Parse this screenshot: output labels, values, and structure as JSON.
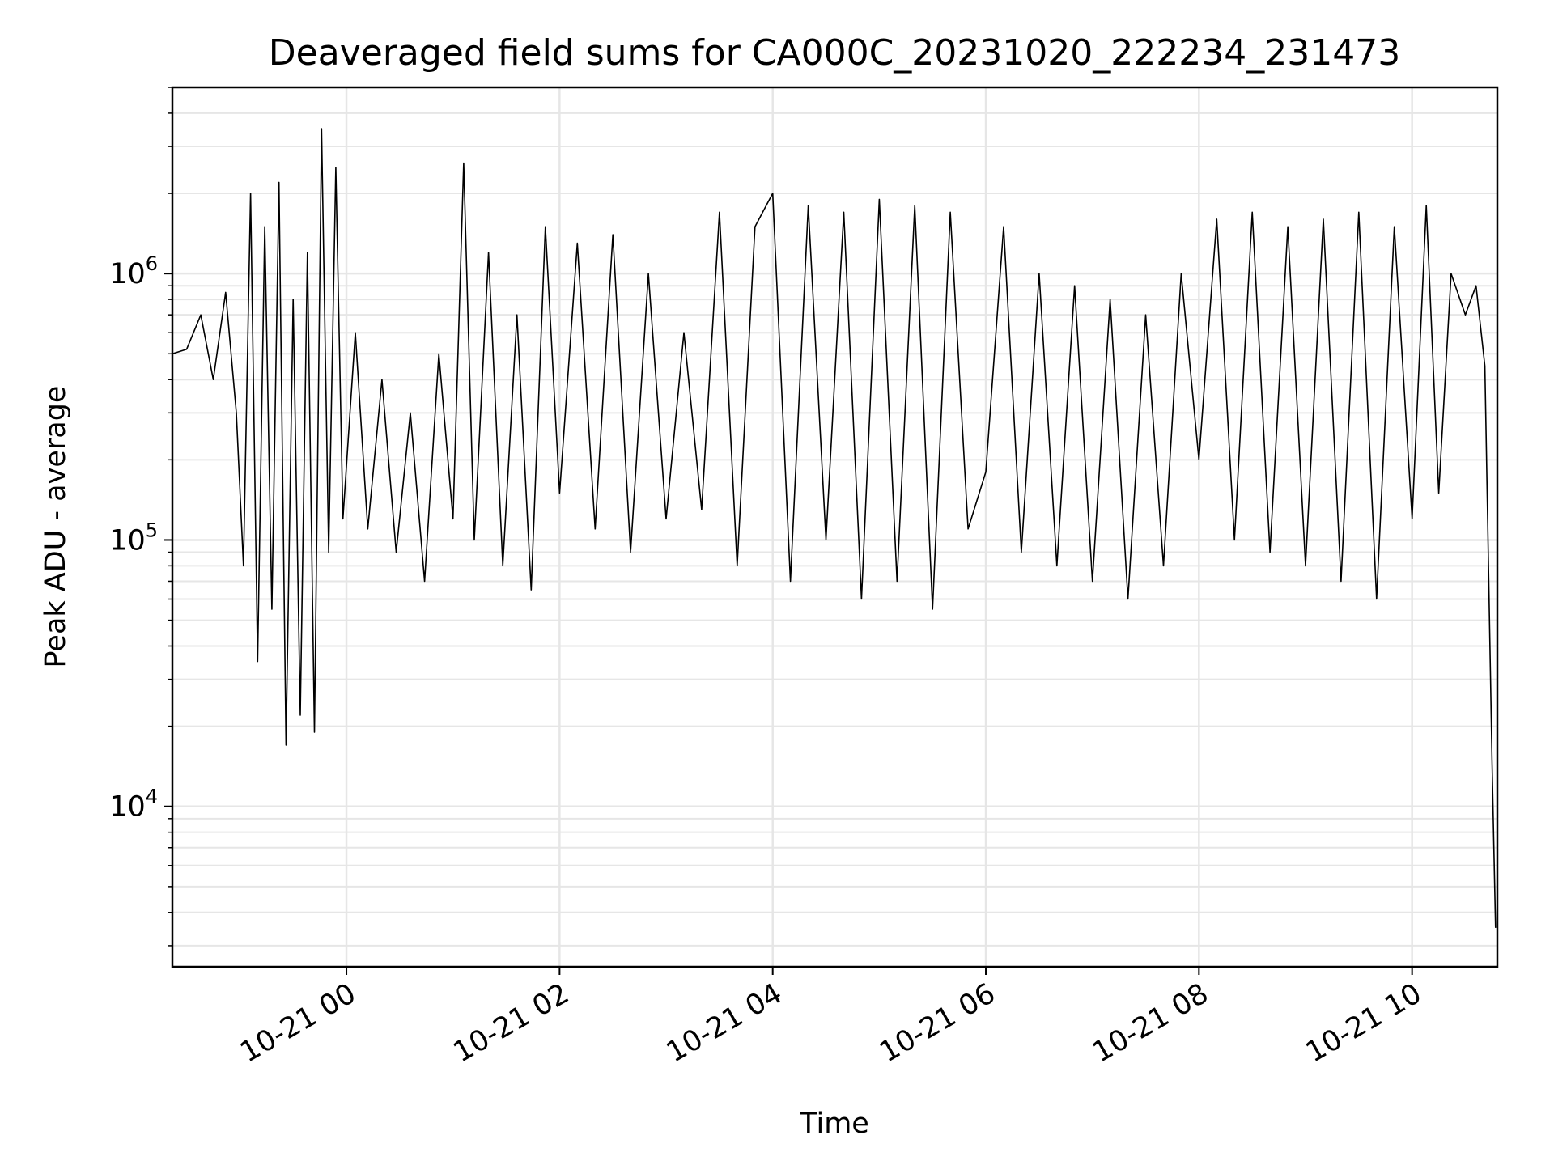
{
  "chart_data": {
    "type": "line",
    "title": "Deaveraged field sums for CA000C_20231020_222234_231473",
    "xlabel": "Time",
    "ylabel": "Peak ADU - average",
    "yscale": "log",
    "ylim": [
      2500,
      5000000
    ],
    "xlim": [
      "2023-10-20 22:22",
      "2023-10-21 10:48"
    ],
    "grid": true,
    "x_ticks": [
      {
        "t": "2023-10-21 00:00",
        "label": "10-21 00"
      },
      {
        "t": "2023-10-21 02:00",
        "label": "10-21 02"
      },
      {
        "t": "2023-10-21 04:00",
        "label": "10-21 04"
      },
      {
        "t": "2023-10-21 06:00",
        "label": "10-21 06"
      },
      {
        "t": "2023-10-21 08:00",
        "label": "10-21 08"
      },
      {
        "t": "2023-10-21 10:00",
        "label": "10-21 10"
      }
    ],
    "y_ticks": [
      {
        "value": 10000,
        "base": "10",
        "exp": "4"
      },
      {
        "value": 100000,
        "base": "10",
        "exp": "5"
      },
      {
        "value": 1000000,
        "base": "10",
        "exp": "6"
      }
    ],
    "series": [
      {
        "color": "#000000",
        "points": [
          [
            "2023-10-20 22:22",
            500000
          ],
          [
            "2023-10-20 22:30",
            520000
          ],
          [
            "2023-10-20 22:38",
            700000
          ],
          [
            "2023-10-20 22:45",
            400000
          ],
          [
            "2023-10-20 22:52",
            850000
          ],
          [
            "2023-10-20 22:58",
            300000
          ],
          [
            "2023-10-20 23:02",
            80000
          ],
          [
            "2023-10-20 23:06",
            2000000
          ],
          [
            "2023-10-20 23:10",
            35000
          ],
          [
            "2023-10-20 23:14",
            1500000
          ],
          [
            "2023-10-20 23:18",
            55000
          ],
          [
            "2023-10-20 23:22",
            2200000
          ],
          [
            "2023-10-20 23:26",
            17000
          ],
          [
            "2023-10-20 23:30",
            800000
          ],
          [
            "2023-10-20 23:34",
            22000
          ],
          [
            "2023-10-20 23:38",
            1200000
          ],
          [
            "2023-10-20 23:42",
            19000
          ],
          [
            "2023-10-20 23:46",
            3500000
          ],
          [
            "2023-10-20 23:50",
            90000
          ],
          [
            "2023-10-20 23:54",
            2500000
          ],
          [
            "2023-10-20 23:58",
            120000
          ],
          [
            "2023-10-21 00:05",
            600000
          ],
          [
            "2023-10-21 00:12",
            110000
          ],
          [
            "2023-10-21 00:20",
            400000
          ],
          [
            "2023-10-21 00:28",
            90000
          ],
          [
            "2023-10-21 00:36",
            300000
          ],
          [
            "2023-10-21 00:44",
            70000
          ],
          [
            "2023-10-21 00:52",
            500000
          ],
          [
            "2023-10-21 01:00",
            120000
          ],
          [
            "2023-10-21 01:06",
            2600000
          ],
          [
            "2023-10-21 01:12",
            100000
          ],
          [
            "2023-10-21 01:20",
            1200000
          ],
          [
            "2023-10-21 01:28",
            80000
          ],
          [
            "2023-10-21 01:36",
            700000
          ],
          [
            "2023-10-21 01:44",
            65000
          ],
          [
            "2023-10-21 01:52",
            1500000
          ],
          [
            "2023-10-21 02:00",
            150000
          ],
          [
            "2023-10-21 02:10",
            1300000
          ],
          [
            "2023-10-21 02:20",
            110000
          ],
          [
            "2023-10-21 02:30",
            1400000
          ],
          [
            "2023-10-21 02:40",
            90000
          ],
          [
            "2023-10-21 02:50",
            1000000
          ],
          [
            "2023-10-21 03:00",
            120000
          ],
          [
            "2023-10-21 03:10",
            600000
          ],
          [
            "2023-10-21 03:20",
            130000
          ],
          [
            "2023-10-21 03:30",
            1700000
          ],
          [
            "2023-10-21 03:40",
            80000
          ],
          [
            "2023-10-21 03:50",
            1500000
          ],
          [
            "2023-10-21 04:00",
            2000000
          ],
          [
            "2023-10-21 04:10",
            70000
          ],
          [
            "2023-10-21 04:20",
            1800000
          ],
          [
            "2023-10-21 04:30",
            100000
          ],
          [
            "2023-10-21 04:40",
            1700000
          ],
          [
            "2023-10-21 04:50",
            60000
          ],
          [
            "2023-10-21 05:00",
            1900000
          ],
          [
            "2023-10-21 05:10",
            70000
          ],
          [
            "2023-10-21 05:20",
            1800000
          ],
          [
            "2023-10-21 05:30",
            55000
          ],
          [
            "2023-10-21 05:40",
            1700000
          ],
          [
            "2023-10-21 05:50",
            110000
          ],
          [
            "2023-10-21 06:00",
            180000
          ],
          [
            "2023-10-21 06:10",
            1500000
          ],
          [
            "2023-10-21 06:20",
            90000
          ],
          [
            "2023-10-21 06:30",
            1000000
          ],
          [
            "2023-10-21 06:40",
            80000
          ],
          [
            "2023-10-21 06:50",
            900000
          ],
          [
            "2023-10-21 07:00",
            70000
          ],
          [
            "2023-10-21 07:10",
            800000
          ],
          [
            "2023-10-21 07:20",
            60000
          ],
          [
            "2023-10-21 07:30",
            700000
          ],
          [
            "2023-10-21 07:40",
            80000
          ],
          [
            "2023-10-21 07:50",
            1000000
          ],
          [
            "2023-10-21 08:00",
            200000
          ],
          [
            "2023-10-21 08:10",
            1600000
          ],
          [
            "2023-10-21 08:20",
            100000
          ],
          [
            "2023-10-21 08:30",
            1700000
          ],
          [
            "2023-10-21 08:40",
            90000
          ],
          [
            "2023-10-21 08:50",
            1500000
          ],
          [
            "2023-10-21 09:00",
            80000
          ],
          [
            "2023-10-21 09:10",
            1600000
          ],
          [
            "2023-10-21 09:20",
            70000
          ],
          [
            "2023-10-21 09:30",
            1700000
          ],
          [
            "2023-10-21 09:40",
            60000
          ],
          [
            "2023-10-21 09:50",
            1500000
          ],
          [
            "2023-10-21 10:00",
            120000
          ],
          [
            "2023-10-21 10:08",
            1800000
          ],
          [
            "2023-10-21 10:15",
            150000
          ],
          [
            "2023-10-21 10:22",
            1000000
          ],
          [
            "2023-10-21 10:30",
            700000
          ],
          [
            "2023-10-21 10:36",
            900000
          ],
          [
            "2023-10-21 10:41",
            450000
          ],
          [
            "2023-10-21 10:45",
            15000
          ],
          [
            "2023-10-21 10:47",
            3500
          ]
        ]
      }
    ]
  }
}
